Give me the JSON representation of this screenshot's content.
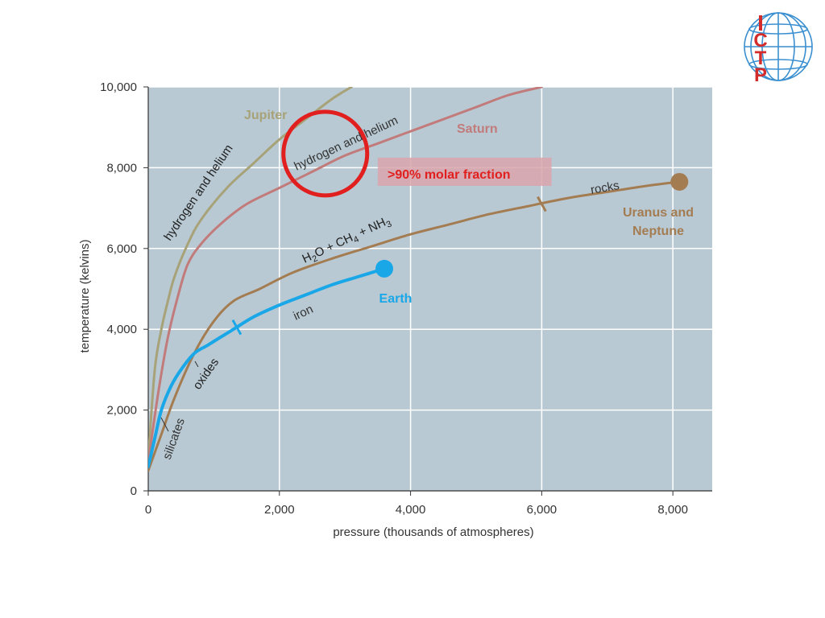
{
  "logo": {
    "letters": [
      "I",
      "C",
      "T",
      "P"
    ],
    "color": "#d42b2b",
    "globe_color": "#3a8fd0"
  },
  "chart_data": {
    "type": "line",
    "xlabel": "pressure (thousands of atmospheres)",
    "ylabel": "temperature (kelvins)",
    "xlim": [
      0,
      8600
    ],
    "ylim": [
      0,
      10000
    ],
    "x_ticks": [
      0,
      2000,
      4000,
      6000,
      8000
    ],
    "x_tick_labels": [
      "0",
      "2,000",
      "4,000",
      "6,000",
      "8,000"
    ],
    "y_ticks": [
      0,
      2000,
      4000,
      6000,
      8000,
      10000
    ],
    "y_tick_labels": [
      "0",
      "2,000",
      "4,000",
      "6,000",
      "8,000",
      "10,000"
    ],
    "grid": true,
    "plot_background": "#b8c9d3",
    "series": [
      {
        "name": "Jupiter",
        "color": "#a7a278",
        "x": [
          0,
          100,
          200,
          300,
          400,
          600,
          800,
          1200,
          1600,
          2000,
          2400,
          2800,
          3100
        ],
        "y": [
          800,
          3000,
          4000,
          4700,
          5300,
          6100,
          6700,
          7500,
          8100,
          8700,
          9200,
          9700,
          10000
        ]
      },
      {
        "name": "Saturn",
        "color": "#c27b7b",
        "x": [
          0,
          150,
          300,
          450,
          600,
          800,
          1100,
          1500,
          2000,
          2500,
          3000,
          3500,
          4000,
          4500,
          5000,
          5500,
          6000
        ],
        "y": [
          700,
          2400,
          3800,
          4800,
          5600,
          6100,
          6600,
          7100,
          7500,
          7900,
          8300,
          8600,
          8900,
          9200,
          9500,
          9800,
          10000
        ]
      },
      {
        "name": "Uranus and Neptune",
        "color": "#a47c52",
        "x": [
          0,
          200,
          400,
          700,
          1000,
          1300,
          1700,
          2200,
          2800,
          3400,
          4000,
          4600,
          5200,
          5800,
          6400,
          7000,
          7600,
          8100
        ],
        "y": [
          500,
          1400,
          2300,
          3400,
          4200,
          4700,
          5000,
          5400,
          5750,
          6050,
          6350,
          6600,
          6850,
          7050,
          7250,
          7400,
          7550,
          7650
        ]
      },
      {
        "name": "Earth",
        "color": "#1aa7e8",
        "x": [
          0,
          100,
          200,
          350,
          500,
          700,
          900,
          1100,
          1300,
          1600,
          2000,
          2400,
          2800,
          3200,
          3600
        ],
        "y": [
          600,
          1300,
          2000,
          2600,
          3000,
          3400,
          3600,
          3800,
          4000,
          4300,
          4600,
          4850,
          5100,
          5300,
          5500
        ]
      }
    ],
    "endpoints": [
      {
        "series": "Earth",
        "x": 3600,
        "y": 5500
      },
      {
        "series": "Uranus and Neptune",
        "x": 8100,
        "y": 7650
      }
    ],
    "tick_marks": [
      {
        "series": "Earth",
        "x": 1350,
        "y": 4050
      },
      {
        "series": "Uranus and Neptune",
        "x": 6000,
        "y": 7100
      }
    ],
    "annotations": {
      "jupiter": "Jupiter",
      "saturn": "Saturn",
      "h_he_1": "hydrogen and helium",
      "h_he_2": "hydrogen and helium",
      "molar": ">90% molar fraction",
      "rocks": "rocks",
      "uranus_1": "Uranus and",
      "uranus_2": "Neptune",
      "earth": "Earth",
      "iron": "iron",
      "oxides": "oxides",
      "silicates": "silicates",
      "ices": {
        "h": "H",
        "two": "2",
        "o": "O + CH",
        "four": "4",
        "plus": " + NH",
        "three": "3"
      }
    },
    "highlight_circle": {
      "x": 2700,
      "y": 8350,
      "color": "#e21f1f"
    },
    "highlight_box": {
      "x0": 3500,
      "x1": 6150,
      "y0": 7550,
      "y1": 8250,
      "color": "#d9a4ab"
    },
    "annotation_colors": {
      "molar": "#e21f1f",
      "dark": "#333333"
    }
  }
}
